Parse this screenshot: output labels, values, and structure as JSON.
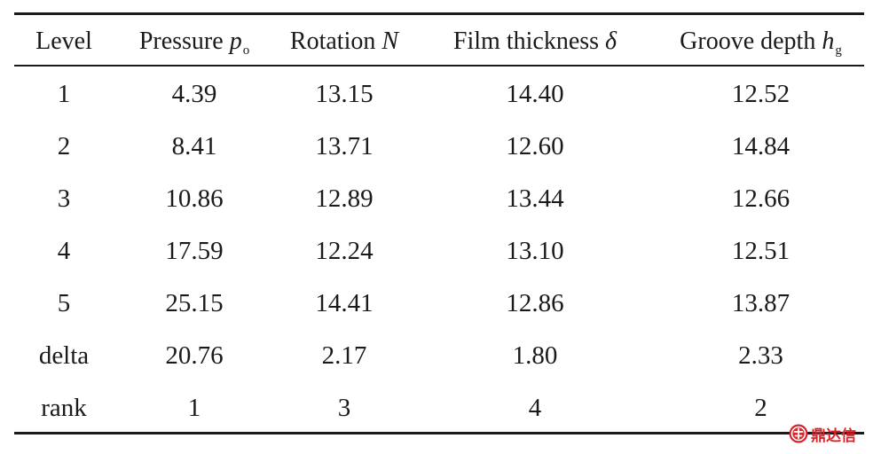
{
  "table": {
    "header": {
      "level": "Level",
      "pressure": {
        "label": "Pressure ",
        "symbol": "p",
        "subscript": "o"
      },
      "rotation": {
        "label": "Rotation ",
        "symbol": "N"
      },
      "film": {
        "label": "Film thickness ",
        "symbol": "δ"
      },
      "groove": {
        "label": "Groove depth ",
        "symbol": "h",
        "subscript": "g"
      }
    },
    "rows": [
      [
        "1",
        "4.39",
        "13.15",
        "14.40",
        "12.52"
      ],
      [
        "2",
        "8.41",
        "13.71",
        "12.60",
        "14.84"
      ],
      [
        "3",
        "10.86",
        "12.89",
        "13.44",
        "12.66"
      ],
      [
        "4",
        "17.59",
        "12.24",
        "13.10",
        "12.51"
      ],
      [
        "5",
        "25.15",
        "14.41",
        "12.86",
        "13.87"
      ],
      [
        "delta",
        "20.76",
        "2.17",
        "1.80",
        "2.33"
      ],
      [
        "rank",
        "1",
        "3",
        "4",
        "2"
      ]
    ]
  },
  "watermark": {
    "text": "鼎达信",
    "color": "#d8232a",
    "icon": "brand-logo-icon"
  }
}
